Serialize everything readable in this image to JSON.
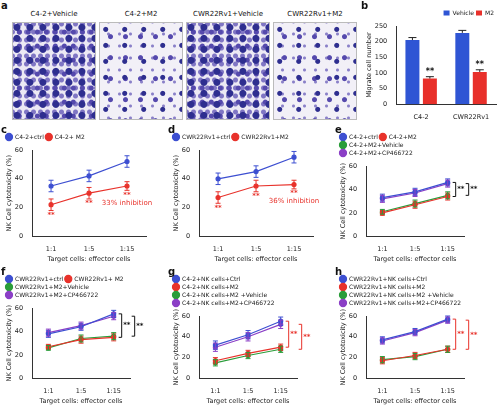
{
  "images": {
    "panel": "a",
    "labels": [
      "C4-2+Vehicle",
      "C4-2+M2",
      "CWR22Rv1+Vehicle",
      "CWR22Rv1+M2"
    ]
  },
  "chart_data": [
    {
      "panel": "b",
      "type": "bar",
      "categories": [
        "C4-2",
        "CWR22Rv1"
      ],
      "ylabel": "Migrate cell number",
      "ylim": [
        0,
        250
      ],
      "yticks": [
        0,
        50,
        100,
        150,
        200,
        250
      ],
      "grid": false,
      "legend": "top-right",
      "series": [
        {
          "name": "Vehicle",
          "color": "#2f55d4",
          "values": [
            205,
            228
          ],
          "errors": [
            8,
            8
          ]
        },
        {
          "name": "M2",
          "color": "#e8302a",
          "values": [
            82,
            103
          ],
          "errors": [
            6,
            7
          ]
        }
      ],
      "annotations": [
        {
          "text": "**",
          "series": 1,
          "index": 0,
          "color": "#111111"
        },
        {
          "text": "**",
          "series": 1,
          "index": 1,
          "color": "#111111"
        }
      ]
    },
    {
      "panel": "c",
      "type": "line",
      "categories": [
        "1:1",
        "1:5",
        "1:15"
      ],
      "xlabel": "Target cells: effector cells",
      "ylabel": "NK Cell cytotoxicity (%)",
      "ylim": [
        0,
        60
      ],
      "yticks": [
        0,
        20,
        40,
        60
      ],
      "grid": false,
      "legend": "top-left",
      "series": [
        {
          "name": "C4-2+ctrl",
          "color": "#3d4fd1",
          "marker": "circle",
          "values": [
            35,
            42,
            52
          ],
          "errors": [
            4,
            4,
            4
          ]
        },
        {
          "name": "C4-2+ M2",
          "color": "#e8322b",
          "marker": "circle",
          "values": [
            22,
            30,
            35
          ],
          "errors": [
            4,
            4,
            3
          ]
        }
      ],
      "annotations": [
        {
          "text": "**",
          "series": 1,
          "index": 0,
          "color": "#e8322b"
        },
        {
          "text": "**",
          "series": 1,
          "index": 1,
          "color": "#e8322b"
        },
        {
          "text": "**",
          "series": 1,
          "index": 2,
          "color": "#e8322b"
        },
        {
          "text": "33% inhibition",
          "series": 1,
          "index": 2,
          "color": "#e8322b"
        }
      ]
    },
    {
      "panel": "d",
      "type": "line",
      "categories": [
        "1:1",
        "1:5",
        "1:15"
      ],
      "xlabel": "Target cells: effector cells",
      "ylabel": "NK Cell cytotoxicity (%)",
      "ylim": [
        0,
        60
      ],
      "yticks": [
        0,
        20,
        40,
        60
      ],
      "grid": false,
      "legend": "top-left",
      "series": [
        {
          "name": "CWR22Rv1+ctrl",
          "color": "#3d4fd1",
          "marker": "circle",
          "values": [
            40,
            45,
            55
          ],
          "errors": [
            4,
            4,
            4
          ]
        },
        {
          "name": "CWR22Rv1+M2",
          "color": "#e8322b",
          "marker": "circle",
          "values": [
            27,
            35,
            36
          ],
          "errors": [
            4,
            4,
            3
          ]
        }
      ],
      "annotations": [
        {
          "text": "**",
          "series": 1,
          "index": 0,
          "color": "#e8322b"
        },
        {
          "text": "**",
          "series": 1,
          "index": 1,
          "color": "#e8322b"
        },
        {
          "text": "**",
          "series": 1,
          "index": 2,
          "color": "#e8322b"
        },
        {
          "text": "36% inhibition",
          "series": 1,
          "index": 2,
          "color": "#e8322b"
        }
      ]
    },
    {
      "panel": "e",
      "type": "line",
      "categories": [
        "1:1",
        "1:5",
        "1:15"
      ],
      "xlabel": "Target cells: effector cells",
      "ylabel": "NK Cell cytotoxicity (%)",
      "ylim": [
        0,
        60
      ],
      "yticks": [
        0,
        20,
        40,
        60
      ],
      "grid": false,
      "legend": "top-left",
      "series": [
        {
          "name": "C4-2+ctrl",
          "color": "#3d4fd1",
          "marker": "circle",
          "values": [
            33,
            38,
            46
          ],
          "errors": [
            3,
            3,
            3
          ]
        },
        {
          "name": "C4-2+M2",
          "color": "#e8322b",
          "marker": "circle",
          "values": [
            20,
            27,
            34
          ],
          "errors": [
            2,
            3,
            3
          ]
        },
        {
          "name": "C4-2+M2+Vehicle",
          "color": "#2a9d3a",
          "marker": "circle",
          "values": [
            21,
            28,
            35
          ],
          "errors": [
            2,
            3,
            3
          ]
        },
        {
          "name": "C4-2+M2+CP466722",
          "color": "#8b3fc6",
          "marker": "circle",
          "values": [
            32,
            37,
            45
          ],
          "errors": [
            3,
            3,
            3
          ]
        }
      ],
      "annotations": [
        {
          "text": "**",
          "between": [
            0,
            1
          ],
          "color": "#111111"
        },
        {
          "text": "**",
          "between": [
            2,
            3
          ],
          "color": "#111111"
        }
      ]
    },
    {
      "panel": "f",
      "type": "line",
      "categories": [
        "1:1",
        "1:5",
        "1:15"
      ],
      "xlabel": "Target cells: effector cells",
      "ylabel": "NK Cell cytotoxicity (%)",
      "ylim": [
        0,
        60
      ],
      "yticks": [
        0,
        20,
        40,
        60
      ],
      "grid": false,
      "legend": "top-left",
      "series": [
        {
          "name": "CWR22Rv1+ctrl",
          "color": "#3d4fd1",
          "marker": "circle",
          "values": [
            38,
            44,
            55
          ],
          "errors": [
            3,
            3,
            3
          ]
        },
        {
          "name": "CWR22Rv1+ M2",
          "color": "#e8322b",
          "marker": "circle",
          "values": [
            27,
            33,
            35
          ],
          "errors": [
            2,
            3,
            3
          ]
        },
        {
          "name": "CWR22Rv1+M2+Vehicle",
          "color": "#2a9d3a",
          "marker": "circle",
          "values": [
            26,
            34,
            36
          ],
          "errors": [
            2,
            3,
            3
          ]
        },
        {
          "name": "CWR22Rv1+M2+CP466722",
          "color": "#8b3fc6",
          "marker": "circle",
          "values": [
            39,
            45,
            53
          ],
          "errors": [
            3,
            3,
            3
          ]
        }
      ],
      "annotations": [
        {
          "text": "**",
          "between": [
            0,
            1
          ],
          "color": "#111111"
        },
        {
          "text": "**",
          "between": [
            2,
            3
          ],
          "color": "#111111"
        }
      ]
    },
    {
      "panel": "g",
      "type": "line",
      "categories": [
        "1:1",
        "1:5",
        "1:15"
      ],
      "xlabel": "Target cells: effector cells",
      "ylabel": "NK Cell cytotoxicity (%)",
      "ylim": [
        0,
        60
      ],
      "yticks": [
        0,
        20,
        40,
        60
      ],
      "grid": false,
      "legend": "top-left",
      "series": [
        {
          "name": "C4-2+NK cells+Ctrl",
          "color": "#3d4fd1",
          "marker": "circle",
          "values": [
            32,
            42,
            55
          ],
          "errors": [
            4,
            4,
            4
          ]
        },
        {
          "name": "C4-2+NK cells+M2",
          "color": "#e8322b",
          "marker": "circle",
          "values": [
            17,
            24,
            30
          ],
          "errors": [
            3,
            3,
            3
          ]
        },
        {
          "name": "C4-2+NK cells+M2 +Vehicle",
          "color": "#2a9d3a",
          "marker": "circle",
          "values": [
            15,
            22,
            28
          ],
          "errors": [
            3,
            3,
            3
          ]
        },
        {
          "name": "C4-2+NK cells+M2+CP466722",
          "color": "#8b3fc6",
          "marker": "circle",
          "values": [
            30,
            40,
            52
          ],
          "errors": [
            4,
            4,
            4
          ]
        }
      ],
      "annotations": [
        {
          "text": "**",
          "between": [
            0,
            1
          ],
          "color": "#e8322b"
        },
        {
          "text": "**",
          "between": [
            2,
            3
          ],
          "color": "#e8322b"
        }
      ]
    },
    {
      "panel": "h",
      "type": "line",
      "categories": [
        "1:1",
        "1:5",
        "1:15"
      ],
      "xlabel": "Target cells: effector cells",
      "ylabel": "NK Cell cytotoxicity (%)",
      "ylim": [
        0,
        60
      ],
      "yticks": [
        0,
        20,
        40,
        60
      ],
      "grid": false,
      "legend": "top-left",
      "series": [
        {
          "name": "CWR22Rv1+NK cells+Ctrl",
          "color": "#3d4fd1",
          "marker": "circle",
          "values": [
            37,
            45,
            57
          ],
          "errors": [
            3,
            3,
            3
          ]
        },
        {
          "name": "CWR22Rv1+NK cells+M2",
          "color": "#e8322b",
          "marker": "circle",
          "values": [
            17,
            22,
            28
          ],
          "errors": [
            3,
            3,
            3
          ]
        },
        {
          "name": "CWR22Rv1+NK cells+M2 +Vehicle",
          "color": "#2a9d3a",
          "marker": "circle",
          "values": [
            18,
            21,
            28
          ],
          "errors": [
            3,
            3,
            3
          ]
        },
        {
          "name": "CWR22Rv1+NK cells+M2+CP466722",
          "color": "#8b3fc6",
          "marker": "circle",
          "values": [
            36,
            44,
            56
          ],
          "errors": [
            3,
            3,
            3
          ]
        }
      ],
      "annotations": [
        {
          "text": "**",
          "between": [
            0,
            1
          ],
          "color": "#e8322b"
        },
        {
          "text": "**",
          "between": [
            2,
            3
          ],
          "color": "#e8322b"
        }
      ]
    }
  ]
}
